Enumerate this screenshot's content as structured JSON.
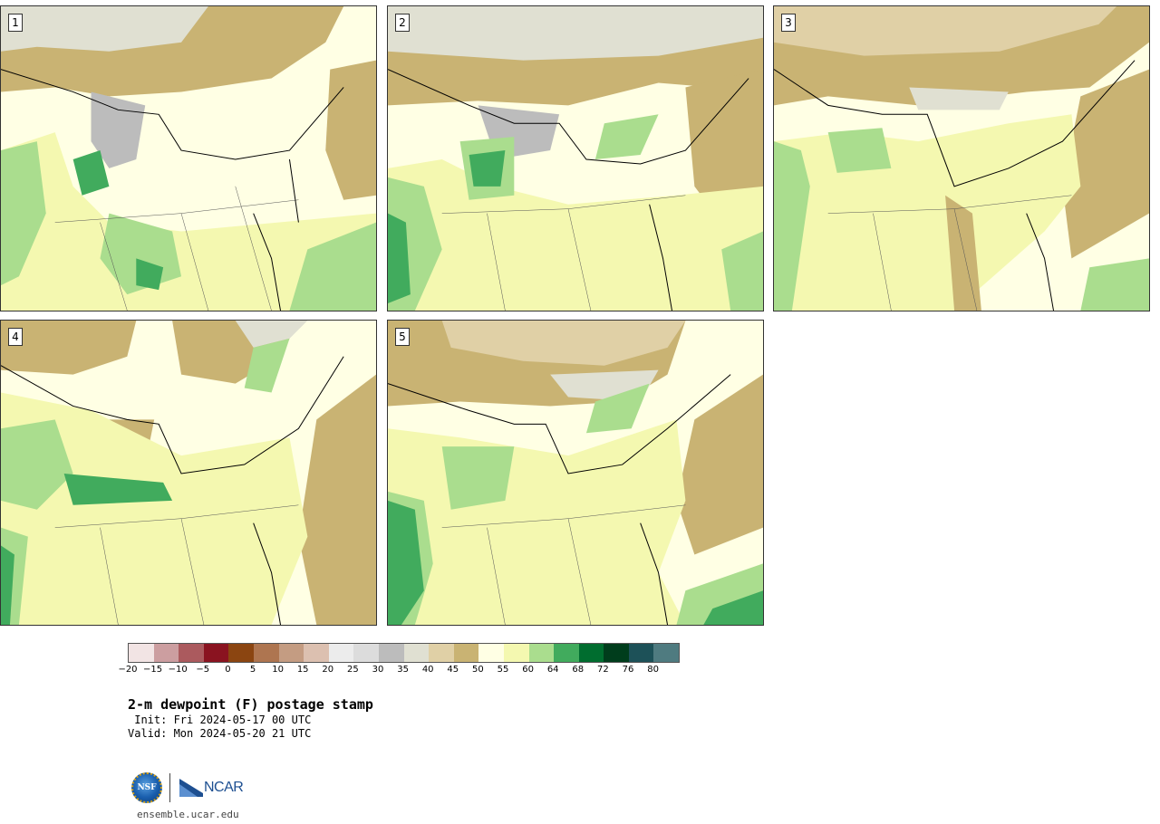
{
  "panels": [
    {
      "label": "1"
    },
    {
      "label": "2"
    },
    {
      "label": "3"
    },
    {
      "label": "4"
    },
    {
      "label": "5"
    }
  ],
  "colorbar": {
    "colors": [
      "#f2e4e4",
      "#cc9ea0",
      "#ab5a5e",
      "#8a1320",
      "#8b4511",
      "#ae7550",
      "#c49c82",
      "#dcc0b0",
      "#ececec",
      "#dcdcdc",
      "#bcbcbc",
      "#e0e0d2",
      "#e0d0a6",
      "#c9b373",
      "#ffffe4",
      "#f4f8b0",
      "#aadd8e",
      "#41ab5d",
      "#006d2f",
      "#003d1c",
      "#1d5158",
      "#4f7b80"
    ],
    "ticks": [
      "−20",
      "−15",
      "−10",
      "−5",
      "0",
      "5",
      "10",
      "15",
      "20",
      "25",
      "30",
      "35",
      "40",
      "45",
      "50",
      "55",
      "60",
      "64",
      "68",
      "72",
      "76",
      "80"
    ]
  },
  "title": "2-m dewpoint (F) postage stamp",
  "init_line": " Init: Fri 2024-05-17 00 UTC",
  "valid_line": "Valid: Mon 2024-05-20 21 UTC",
  "logos": {
    "nsf_text": "NSF",
    "ncar_text": "NCAR"
  },
  "url": "ensemble.ucar.edu",
  "map_colors": {
    "land_tan": "#c9b373",
    "light_tan": "#e0d0a6",
    "grey_cold": "#e0e0d2",
    "grey_mid": "#bcbcbc",
    "cream": "#ffffe4",
    "yellow": "#f4f8b0",
    "light_green": "#aadd8e",
    "green": "#41ab5d"
  }
}
